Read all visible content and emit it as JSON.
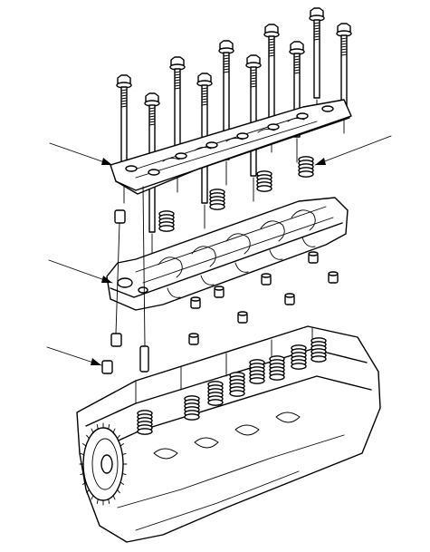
{
  "figure": {
    "type": "exploded-view line drawing",
    "subject": "engine-cylinder-head-rocker-arm-assembly",
    "colors": {
      "ink": "#000000",
      "paper": "#ffffff"
    },
    "callouts": [
      {
        "id": "retainer-plate",
        "label": ""
      },
      {
        "id": "rocker-shaft-spring-right",
        "label": ""
      },
      {
        "id": "rocker-arm-shaft-holder",
        "label": ""
      },
      {
        "id": "dowel-pin",
        "label": ""
      }
    ],
    "parts": [
      "mounting-bolt",
      "shaft-retainer-plate",
      "rocker-shaft-spring",
      "dowel-pin",
      "rocker-arm-assembly",
      "camshaft-holder",
      "cylinder-head",
      "cam-sprocket"
    ]
  }
}
